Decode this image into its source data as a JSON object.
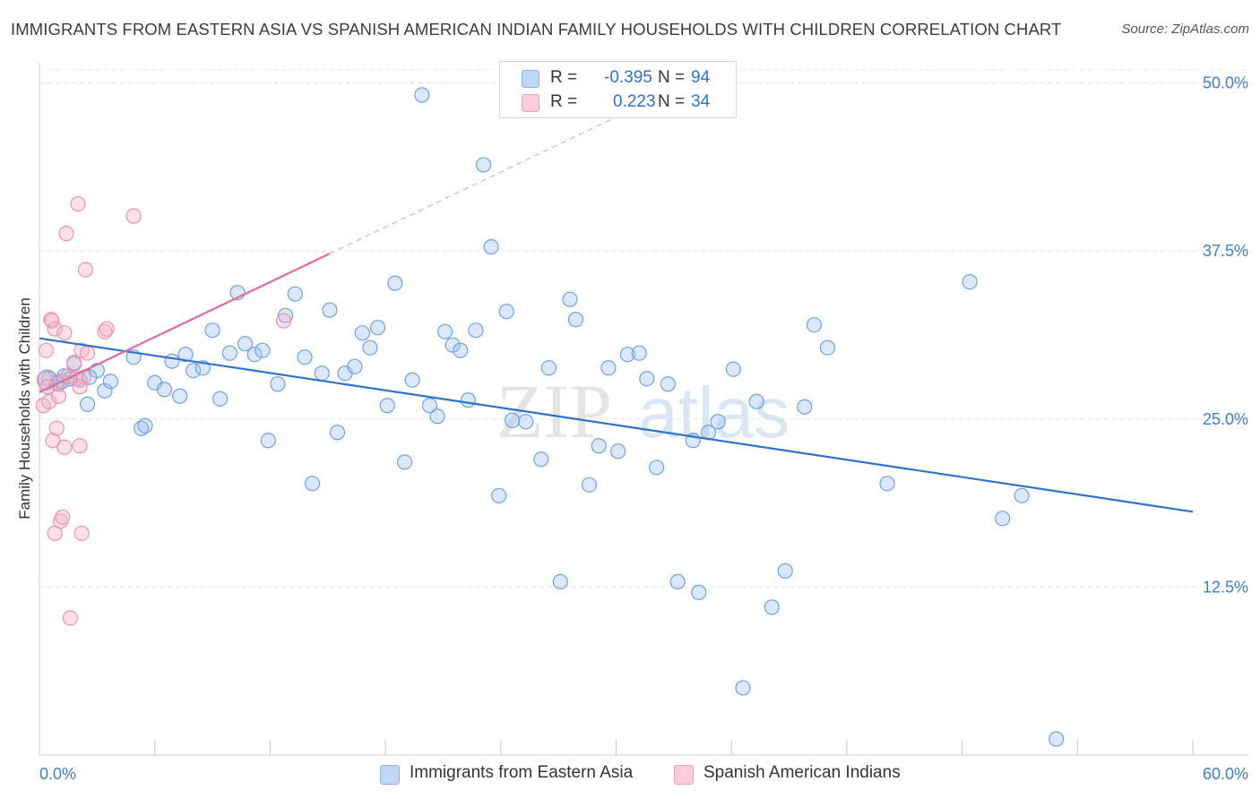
{
  "title": "IMMIGRANTS FROM EASTERN ASIA VS SPANISH AMERICAN INDIAN FAMILY HOUSEHOLDS WITH CHILDREN CORRELATION CHART",
  "source": "Source: ZipAtlas.com",
  "watermark": {
    "zip": "ZIP",
    "atlas": "atlas"
  },
  "legend": {
    "r_label": "R =",
    "n_label": "N =",
    "series": [
      {
        "name": "Immigrants from Eastern Asia",
        "r": "-0.395",
        "n": "94",
        "color": "#9fc3ee"
      },
      {
        "name": "Spanish American Indians",
        "r": "0.223",
        "n": "34",
        "color": "#f5b2c6"
      }
    ]
  },
  "chart_data": {
    "type": "scatter",
    "title": "IMMIGRANTS FROM EASTERN ASIA VS SPANISH AMERICAN INDIAN FAMILY HOUSEHOLDS WITH CHILDREN CORRELATION CHART",
    "xlabel": "",
    "ylabel": "Family Households with Children",
    "xlim": [
      0,
      60
    ],
    "ylim": [
      0,
      51.5
    ],
    "x_tick_labels": [
      "0.0%",
      "60.0%"
    ],
    "y_ticks": [
      12.5,
      25.0,
      37.5,
      50.0
    ],
    "y_tick_labels": [
      "12.5%",
      "25.0%",
      "37.5%",
      "50.0%"
    ],
    "grid": true,
    "legend_position": "top-center",
    "series": [
      {
        "name": "Immigrants from Eastern Asia",
        "color": "#4a8fdd",
        "trend": {
          "x": [
            0,
            60
          ],
          "y": [
            31.0,
            18.1
          ],
          "color": "#2f72cc"
        },
        "points": [
          [
            0.5,
            28.0
          ],
          [
            1.0,
            27.6
          ],
          [
            1.2,
            27.8
          ],
          [
            1.3,
            28.2
          ],
          [
            1.8,
            29.1
          ],
          [
            2.1,
            27.9
          ],
          [
            2.5,
            26.1
          ],
          [
            3.0,
            28.6
          ],
          [
            3.4,
            27.1
          ],
          [
            3.7,
            27.8
          ],
          [
            4.9,
            29.6
          ],
          [
            5.3,
            24.3
          ],
          [
            5.5,
            24.5
          ],
          [
            6.0,
            27.7
          ],
          [
            6.5,
            27.2
          ],
          [
            6.9,
            29.3
          ],
          [
            7.3,
            26.7
          ],
          [
            7.6,
            29.8
          ],
          [
            8.0,
            28.6
          ],
          [
            8.5,
            28.8
          ],
          [
            9.0,
            31.6
          ],
          [
            9.4,
            26.5
          ],
          [
            9.9,
            29.9
          ],
          [
            10.3,
            34.4
          ],
          [
            10.7,
            30.6
          ],
          [
            11.2,
            29.8
          ],
          [
            11.6,
            30.1
          ],
          [
            11.9,
            23.4
          ],
          [
            12.4,
            27.6
          ],
          [
            12.8,
            32.7
          ],
          [
            13.3,
            34.3
          ],
          [
            13.8,
            29.6
          ],
          [
            14.2,
            20.2
          ],
          [
            14.7,
            28.4
          ],
          [
            15.1,
            33.1
          ],
          [
            15.5,
            24.0
          ],
          [
            15.9,
            28.4
          ],
          [
            16.4,
            28.9
          ],
          [
            16.8,
            31.4
          ],
          [
            17.2,
            30.3
          ],
          [
            17.6,
            31.8
          ],
          [
            18.1,
            26.0
          ],
          [
            18.5,
            35.1
          ],
          [
            19.0,
            21.8
          ],
          [
            19.4,
            27.9
          ],
          [
            19.9,
            49.1
          ],
          [
            20.3,
            26.0
          ],
          [
            20.7,
            25.2
          ],
          [
            21.1,
            31.5
          ],
          [
            21.5,
            30.5
          ],
          [
            21.9,
            30.1
          ],
          [
            22.3,
            26.4
          ],
          [
            22.7,
            31.6
          ],
          [
            23.1,
            43.9
          ],
          [
            23.5,
            37.8
          ],
          [
            23.9,
            19.3
          ],
          [
            24.3,
            33.0
          ],
          [
            24.6,
            24.9
          ],
          [
            25.3,
            24.8
          ],
          [
            26.1,
            22.0
          ],
          [
            26.5,
            28.8
          ],
          [
            27.1,
            12.9
          ],
          [
            27.6,
            33.9
          ],
          [
            27.9,
            32.4
          ],
          [
            28.6,
            20.1
          ],
          [
            29.1,
            23.0
          ],
          [
            29.6,
            28.8
          ],
          [
            30.1,
            22.6
          ],
          [
            30.6,
            29.8
          ],
          [
            31.2,
            29.9
          ],
          [
            31.6,
            28.0
          ],
          [
            32.1,
            21.4
          ],
          [
            32.7,
            27.6
          ],
          [
            33.2,
            12.9
          ],
          [
            34.0,
            23.4
          ],
          [
            34.3,
            12.1
          ],
          [
            34.8,
            24.0
          ],
          [
            35.3,
            24.8
          ],
          [
            36.1,
            28.7
          ],
          [
            36.6,
            5.0
          ],
          [
            37.3,
            26.3
          ],
          [
            38.1,
            11.0
          ],
          [
            38.8,
            13.7
          ],
          [
            39.8,
            25.9
          ],
          [
            40.3,
            32.0
          ],
          [
            41.0,
            30.3
          ],
          [
            44.1,
            20.2
          ],
          [
            48.4,
            35.2
          ],
          [
            50.1,
            17.6
          ],
          [
            51.1,
            19.3
          ],
          [
            52.9,
            1.2
          ],
          [
            1.6,
            28.0
          ],
          [
            2.6,
            28.1
          ],
          [
            0.9,
            27.7
          ]
        ]
      },
      {
        "name": "Spanish American Indians",
        "color": "#ee86a6",
        "trend": {
          "x": [
            0,
            15.1
          ],
          "y": [
            27.0,
            37.3
          ],
          "color": "#e36c98",
          "extended_to": [
            30.8,
            48.0
          ]
        },
        "points": [
          [
            0.2,
            26.0
          ],
          [
            0.3,
            28.0
          ],
          [
            0.35,
            30.1
          ],
          [
            0.4,
            27.4
          ],
          [
            0.5,
            26.3
          ],
          [
            0.6,
            32.4
          ],
          [
            0.7,
            23.4
          ],
          [
            0.8,
            31.7
          ],
          [
            0.8,
            16.5
          ],
          [
            0.9,
            24.3
          ],
          [
            1.0,
            26.7
          ],
          [
            1.1,
            27.8
          ],
          [
            1.1,
            17.4
          ],
          [
            1.2,
            17.7
          ],
          [
            1.3,
            31.4
          ],
          [
            1.3,
            22.9
          ],
          [
            1.4,
            38.8
          ],
          [
            1.5,
            28.2
          ],
          [
            1.6,
            10.2
          ],
          [
            1.8,
            29.2
          ],
          [
            1.9,
            28.0
          ],
          [
            2.0,
            41.0
          ],
          [
            2.1,
            23.0
          ],
          [
            2.2,
            30.1
          ],
          [
            2.3,
            28.1
          ],
          [
            2.1,
            27.4
          ],
          [
            2.2,
            16.5
          ],
          [
            2.4,
            36.1
          ],
          [
            2.5,
            29.9
          ],
          [
            3.4,
            31.5
          ],
          [
            3.5,
            31.7
          ],
          [
            4.9,
            40.1
          ],
          [
            12.7,
            32.3
          ],
          [
            0.65,
            32.3
          ]
        ]
      }
    ]
  }
}
